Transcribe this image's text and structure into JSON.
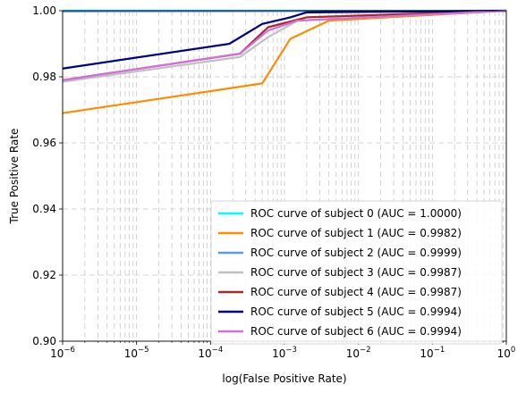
{
  "chart_data": {
    "type": "line",
    "title": "",
    "xlabel": "log(False Positive Rate)",
    "ylabel": "True Positive Rate",
    "xscale": "log",
    "xlim": [
      1e-06,
      1
    ],
    "ylim": [
      0.9,
      1.0
    ],
    "grid": true,
    "legend_position": "lower-right",
    "x_ticks": [
      {
        "value": 1e-06,
        "base": "10",
        "exp": "−6"
      },
      {
        "value": 1e-05,
        "base": "10",
        "exp": "−5"
      },
      {
        "value": 0.0001,
        "base": "10",
        "exp": "−4"
      },
      {
        "value": 0.001,
        "base": "10",
        "exp": "−3"
      },
      {
        "value": 0.01,
        "base": "10",
        "exp": "−2"
      },
      {
        "value": 0.1,
        "base": "10",
        "exp": "−1"
      },
      {
        "value": 1,
        "base": "10",
        "exp": "0"
      }
    ],
    "y_ticks": [
      {
        "value": 0.9,
        "label": "0.90"
      },
      {
        "value": 0.92,
        "label": "0.92"
      },
      {
        "value": 0.94,
        "label": "0.94"
      },
      {
        "value": 0.96,
        "label": "0.96"
      },
      {
        "value": 0.98,
        "label": "0.98"
      },
      {
        "value": 1.0,
        "label": "1.00"
      }
    ],
    "series": [
      {
        "name": "ROC curve of subject 0 (AUC = 1.0000)",
        "color": "#00ffff",
        "x": [
          1e-06,
          1
        ],
        "y": [
          1.0,
          1.0
        ]
      },
      {
        "name": "ROC curve of subject 1 (AUC = 0.9982)",
        "color": "#ff8c00",
        "x": [
          1e-06,
          0.0005,
          0.0012,
          0.004,
          1
        ],
        "y": [
          0.969,
          0.978,
          0.9915,
          0.997,
          1.0
        ]
      },
      {
        "name": "ROC curve of subject 2 (AUC = 0.9999)",
        "color": "#6495ed",
        "x": [
          1e-06,
          1
        ],
        "y": [
          0.9998,
          1.0
        ]
      },
      {
        "name": "ROC curve of subject 3 (AUC = 0.9987)",
        "color": "#c0c0c0",
        "x": [
          1e-06,
          0.00025,
          0.0006,
          0.0015,
          1
        ],
        "y": [
          0.9785,
          0.986,
          0.992,
          0.997,
          1.0
        ]
      },
      {
        "name": "ROC curve of subject 4 (AUC = 0.9987)",
        "color": "#a52a2a",
        "x": [
          1e-06,
          0.00025,
          0.0006,
          0.002,
          1
        ],
        "y": [
          0.979,
          0.987,
          0.995,
          0.998,
          1.0
        ]
      },
      {
        "name": "ROC curve of subject 5 (AUC = 0.9994)",
        "color": "#000080",
        "x": [
          1e-06,
          0.00018,
          0.0005,
          0.0012,
          0.002,
          1
        ],
        "y": [
          0.9825,
          0.99,
          0.996,
          0.998,
          0.9995,
          1.0
        ]
      },
      {
        "name": "ROC curve of subject 6 (AUC = 0.9994)",
        "color": "#d070e0",
        "x": [
          1e-06,
          0.00025,
          0.0006,
          0.0015,
          1
        ],
        "y": [
          0.979,
          0.987,
          0.994,
          0.997,
          1.0
        ]
      }
    ]
  }
}
